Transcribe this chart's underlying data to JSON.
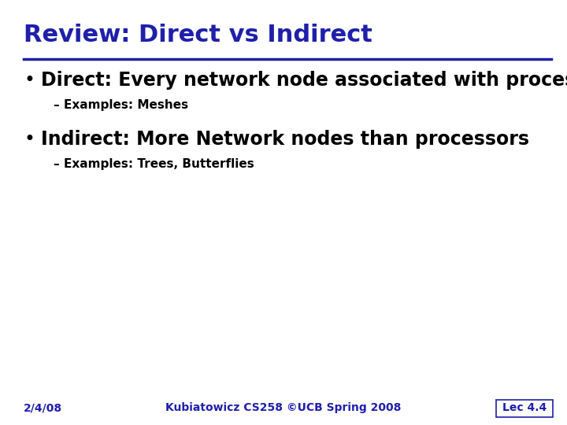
{
  "title": "Review: Direct vs Indirect",
  "title_color": "#1f1faa",
  "title_fontsize": 22,
  "separator_color": "#1f1faa",
  "background_color": "#ffffff",
  "bullet1": "Direct: Every network node associated with processor",
  "sub1": "– Examples: Meshes",
  "bullet2": "Indirect: More Network nodes than processors",
  "sub2": "– Examples: Trees, Butterflies",
  "bullet_color": "#000000",
  "bullet_fontsize": 17,
  "sub_fontsize": 11,
  "footer_left": "2/4/08",
  "footer_center": "Kubiatowicz CS258 ©UCB Spring 2008",
  "footer_right": "Lec 4.4",
  "footer_color": "#1f1faa",
  "footer_fontsize": 10,
  "footer_box_color": "#1f1faa",
  "footer_box_text_color": "#1f1faa"
}
